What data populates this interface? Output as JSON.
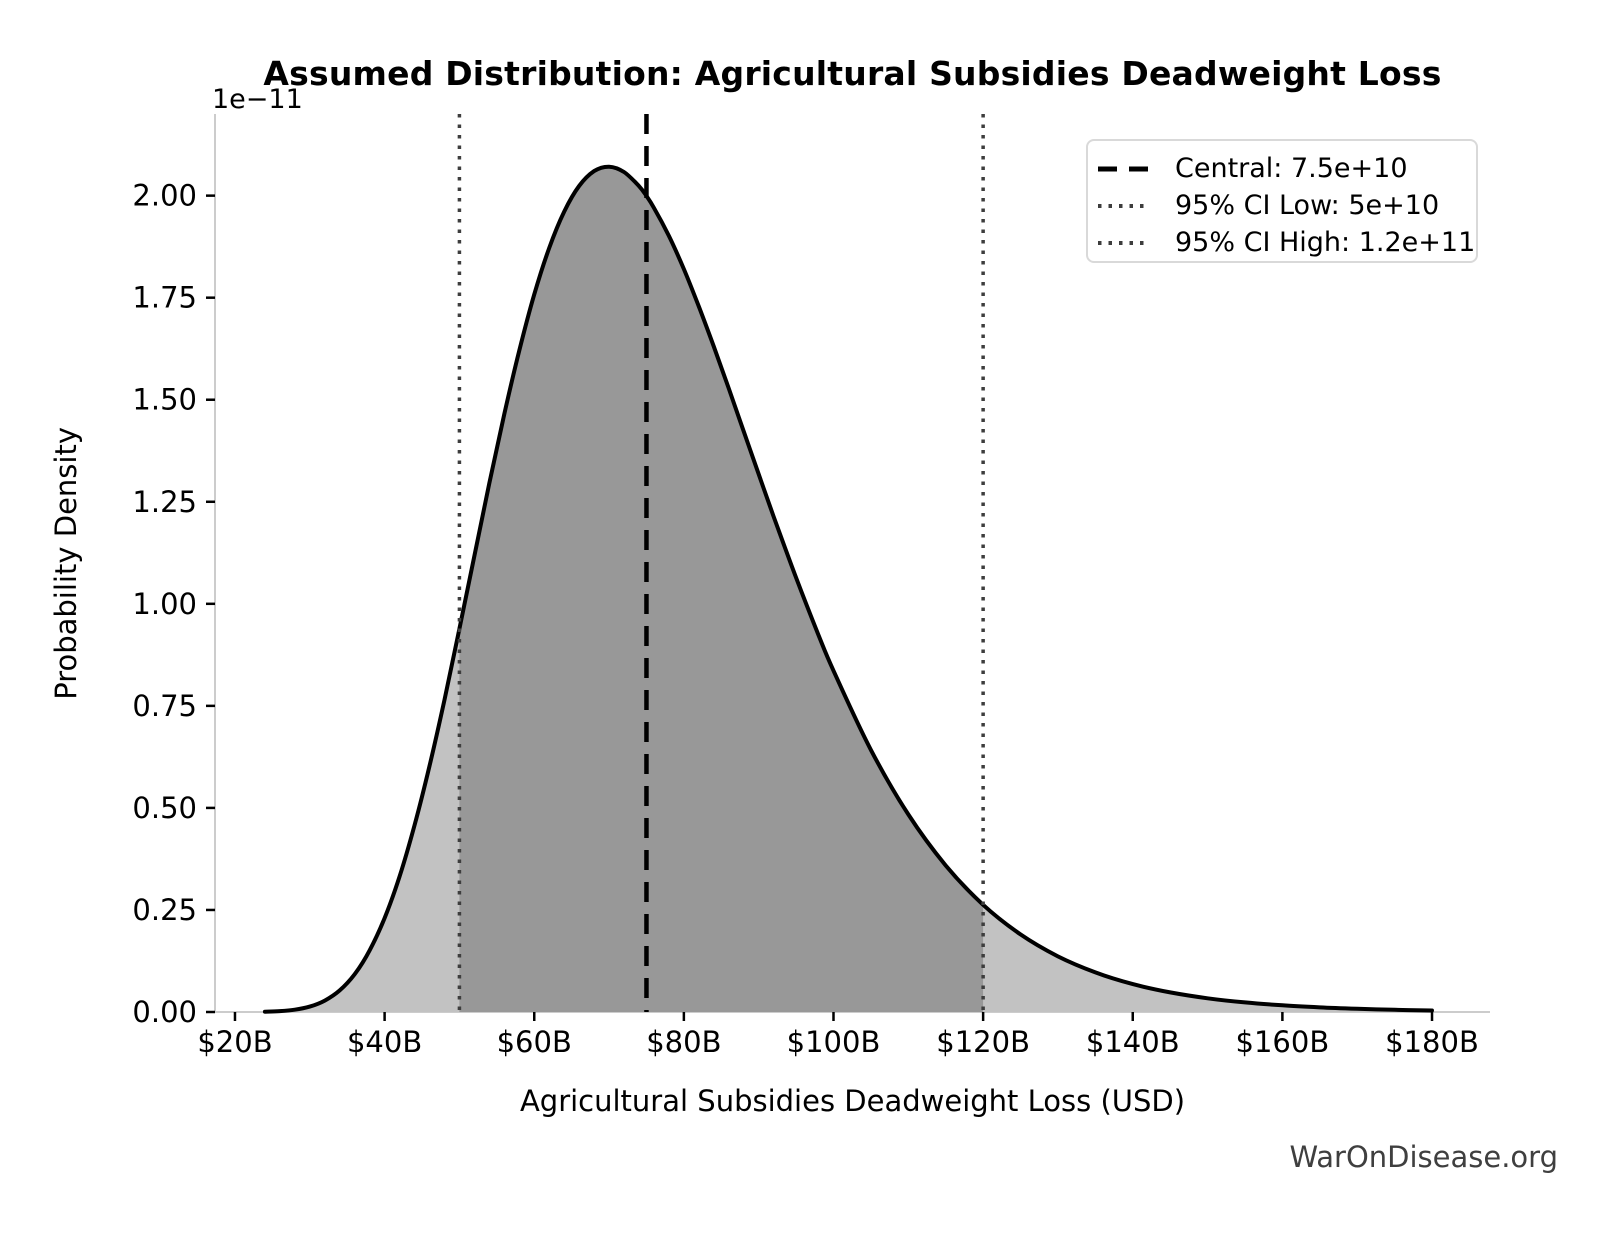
{
  "figure": {
    "title": "Assumed Distribution: Agricultural Subsidies Deadweight Loss",
    "watermark": "WarOnDisease.org"
  },
  "chart_data": {
    "type": "area",
    "title": "Assumed Distribution: Agricultural Subsidies Deadweight Loss",
    "xlabel": "Agricultural Subsidies Deadweight Loss (USD)",
    "ylabel": "Probability Density",
    "y_scale_offset_label": "1e−11",
    "grid": false,
    "legend_position": "upper right",
    "x_tick_labels": [
      "$20B",
      "$40B",
      "$60B",
      "$80B",
      "$100B",
      "$120B",
      "$140B",
      "$160B",
      "$180B"
    ],
    "x_tick_values_billions": [
      20,
      40,
      60,
      80,
      100,
      120,
      140,
      160,
      180
    ],
    "y_tick_labels": [
      "0.00",
      "0.25",
      "0.50",
      "0.75",
      "1.00",
      "1.25",
      "1.50",
      "1.75",
      "2.00"
    ],
    "y_tick_values": [
      0,
      0.25,
      0.5,
      0.75,
      1.0,
      1.25,
      1.5,
      1.75,
      2.0
    ],
    "xlim_billions": [
      17.33,
      187.75
    ],
    "ylim_density_1e11": [
      0,
      2.2
    ],
    "distribution": {
      "family": "lognormal",
      "central": "7.5e+10",
      "ci95_low": "5e+10",
      "ci95_high": "1.2e+11",
      "peak_x_billions": 70,
      "peak_density_1e11": 2.07
    },
    "markers": {
      "central_billions": 75,
      "ci_low_billions": 50,
      "ci_high_billions": 120
    },
    "curve": {
      "x_billions": [
        24,
        26,
        28,
        30,
        32,
        34,
        36,
        38,
        40,
        42,
        44,
        46,
        48,
        50,
        52,
        54,
        56,
        58,
        60,
        62,
        64,
        66,
        68,
        70,
        72,
        74,
        75,
        76,
        78,
        80,
        82,
        84,
        86,
        88,
        90,
        92,
        95,
        98,
        100,
        105,
        110,
        115,
        120,
        125,
        130,
        135,
        140,
        145,
        150,
        155,
        160,
        165,
        170,
        175,
        180
      ],
      "density_1e11": [
        0.0007,
        0.0021,
        0.0056,
        0.0133,
        0.0279,
        0.053,
        0.0927,
        0.1509,
        0.2301,
        0.3321,
        0.4571,
        0.6026,
        0.7648,
        0.9388,
        1.1176,
        1.2952,
        1.4649,
        1.6206,
        1.7575,
        1.8718,
        1.9609,
        2.0236,
        2.06,
        2.0708,
        2.0578,
        2.0234,
        1.999,
        1.9703,
        1.9014,
        1.8199,
        1.7286,
        1.6303,
        1.5276,
        1.4227,
        1.3176,
        1.214,
        1.064,
        0.9234,
        0.8361,
        0.6422,
        0.484,
        0.359,
        0.2627,
        0.1901,
        0.1363,
        0.0969,
        0.0684,
        0.0481,
        0.0336,
        0.0234,
        0.0163,
        0.0113,
        0.0078,
        0.0054,
        0.0037
      ]
    },
    "legend": [
      {
        "label": "Central: 7.5e+10",
        "line_style": "dashed",
        "color": "#000000"
      },
      {
        "label": "95% CI Low: 5e+10",
        "line_style": "dotted",
        "color": "#3d3d3d"
      },
      {
        "label": "95% CI High: 1.2e+11",
        "line_style": "dotted",
        "color": "#3d3d3d"
      }
    ],
    "colors": {
      "curve": "#000000",
      "fill_light": "#c2c2c2",
      "fill_ci": "#989898",
      "central_line": "#000000",
      "ci_line": "#3d3d3d",
      "spine": "#cccccc",
      "tick": "#000000",
      "watermark": "#3f3f3f"
    }
  }
}
